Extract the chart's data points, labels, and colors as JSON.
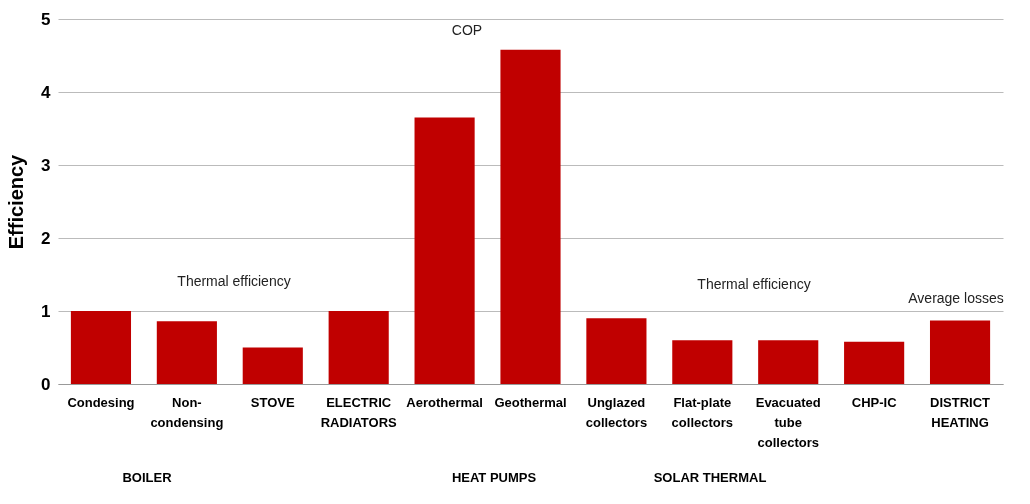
{
  "chart_data": {
    "type": "bar",
    "ylabel": "Efficiency",
    "categories": [
      "Condesing",
      "Non-condensing",
      "STOVE",
      "ELECTRIC RADIATORS",
      "Aerothermal",
      "Geothermal",
      "Unglazed collectors",
      "Flat-plate collectors",
      "Evacuated tube collectors",
      "CHP-IC",
      "DISTRICT HEATING"
    ],
    "values": [
      1.0,
      0.86,
      0.5,
      1.0,
      3.65,
      4.58,
      0.9,
      0.6,
      0.6,
      0.58,
      0.87
    ],
    "color": "#c00000",
    "ylim": [
      0,
      5
    ],
    "yticks": [
      0,
      1,
      2,
      3,
      4,
      5
    ],
    "grid": "y",
    "annotations": [
      "Thermal efficiency",
      "COP",
      "Thermal efficiency",
      "Average losses",
      "BOILER",
      "HEAT PUMPS",
      "SOLAR THERMAL"
    ]
  }
}
